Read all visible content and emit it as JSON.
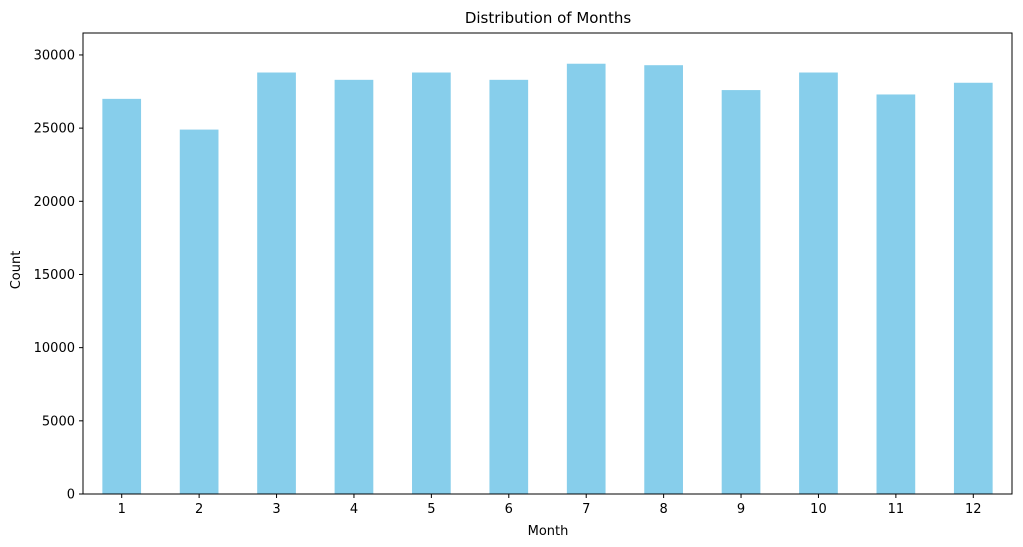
{
  "chart_data": {
    "type": "bar",
    "title": "Distribution of Months",
    "xlabel": "Month",
    "ylabel": "Count",
    "categories": [
      "1",
      "2",
      "3",
      "4",
      "5",
      "6",
      "7",
      "8",
      "9",
      "10",
      "11",
      "12"
    ],
    "values": [
      27000,
      24900,
      28800,
      28300,
      28800,
      28300,
      29400,
      29300,
      27600,
      28800,
      27300,
      28100
    ],
    "ylim": [
      0,
      30000
    ],
    "yticks": [
      "0",
      "5000",
      "10000",
      "15000",
      "20000",
      "25000",
      "30000"
    ],
    "bar_color": "#87CEEB",
    "grid": false,
    "legend": "none"
  }
}
